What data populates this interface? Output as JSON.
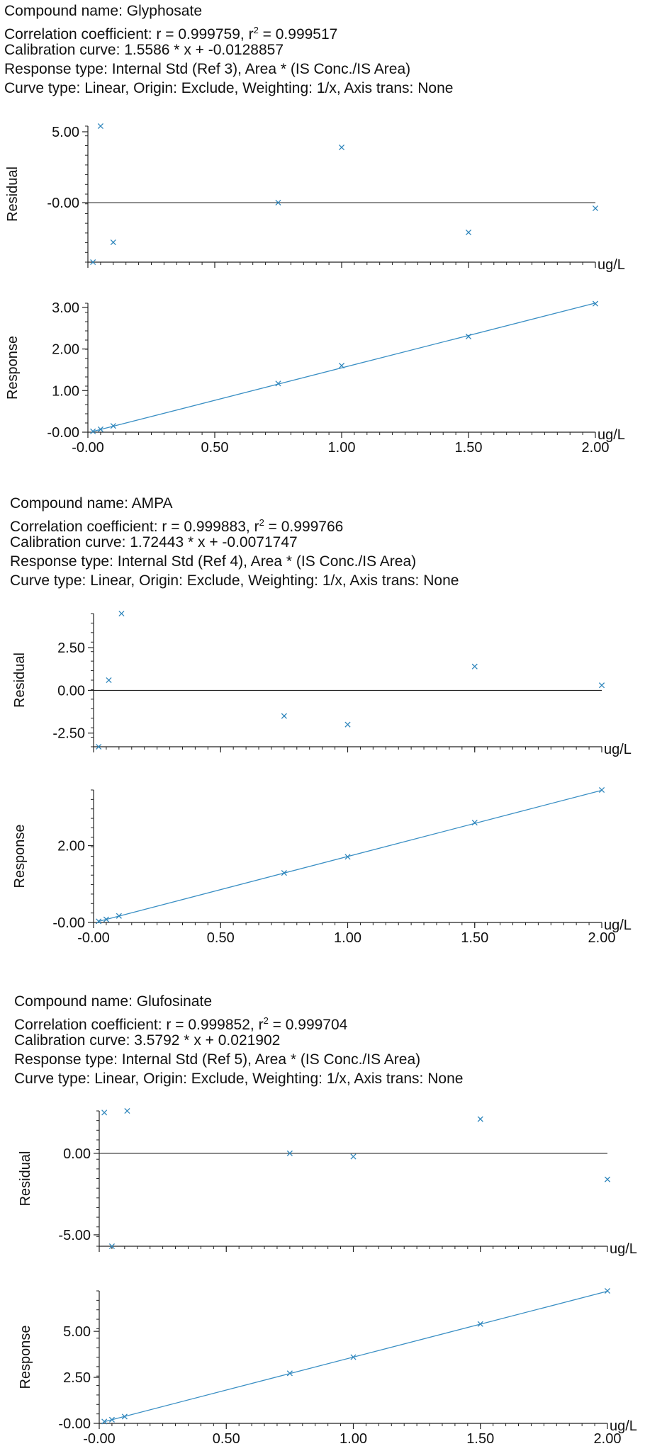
{
  "colors": {
    "marker": "#2f86bc",
    "axis": "#222222",
    "fit_line": "#3a8fc4"
  },
  "chart_data": [
    {
      "type": "scatter",
      "compound": {
        "name_line": "Compound name: Glyphosate",
        "corr_prefix": "Correlation coefficient: r = 0.999759, r",
        "corr_sup": "2",
        "corr_suffix": " = 0.999517",
        "calib_line": "Calibration curve: 1.5586 * x + -0.0128857",
        "response_line": "Response type: Internal Std (Ref 3), Area * (IS Conc./IS Area)",
        "curve_line": "Curve type: Linear, Origin: Exclude, Weighting: 1/x, Axis trans: None"
      },
      "unit_label": "ug/L",
      "x_ticks": [
        "-0.00",
        "0.50",
        "1.00",
        "1.50",
        "2.00"
      ],
      "xlim": [
        0,
        2
      ],
      "residual": {
        "ylabel": "Residual",
        "ylim": [
          -4.2,
          5.4
        ],
        "yticks": [
          {
            "v": 5,
            "label": "5.00"
          },
          {
            "v": 0,
            "label": "-0.00"
          }
        ],
        "points": [
          [
            0.02,
            -4.2
          ],
          [
            0.05,
            5.4
          ],
          [
            0.1,
            -2.8
          ],
          [
            0.75,
            0.0
          ],
          [
            1.0,
            3.9
          ],
          [
            1.5,
            -2.1
          ],
          [
            2.0,
            -0.4
          ]
        ]
      },
      "response": {
        "ylabel": "Response",
        "ylim": [
          0,
          3.1
        ],
        "yticks": [
          {
            "v": 3,
            "label": "3.00"
          },
          {
            "v": 2,
            "label": "2.00"
          },
          {
            "v": 1,
            "label": "1.00"
          },
          {
            "v": 0,
            "label": "-0.00"
          }
        ],
        "slope": 1.5586,
        "intercept": -0.0128857,
        "points": [
          [
            0.02,
            0.02
          ],
          [
            0.05,
            0.07
          ],
          [
            0.1,
            0.15
          ],
          [
            0.75,
            1.17
          ],
          [
            1.0,
            1.6
          ],
          [
            1.5,
            2.3
          ],
          [
            2.0,
            3.09
          ]
        ]
      }
    },
    {
      "type": "scatter",
      "compound": {
        "name_line": "Compound name: AMPA",
        "corr_prefix": "Correlation coefficient: r = 0.999883, r",
        "corr_sup": "2",
        "corr_suffix": "  = 0.999766",
        "calib_line": "Calibration curve: 1.72443 * x + -0.0071747",
        "response_line": "Response type: Internal Std (Ref 4), Area * (IS Conc./IS Area)",
        "curve_line": "Curve type: Linear, Origin: Exclude, Weighting: 1/x, Axis trans: None"
      },
      "unit_label": "ug/L",
      "x_ticks": [
        "-0.00",
        "0.50",
        "1.00",
        "1.50",
        "2.00"
      ],
      "xlim": [
        0,
        2
      ],
      "residual": {
        "ylabel": "Residual",
        "ylim": [
          -3.3,
          4.5
        ],
        "yticks": [
          {
            "v": 2.5,
            "label": "2.50"
          },
          {
            "v": 0,
            "label": "0.00"
          },
          {
            "v": -2.5,
            "label": "-2.50"
          }
        ],
        "points": [
          [
            0.02,
            -3.3
          ],
          [
            0.06,
            0.6
          ],
          [
            0.11,
            4.5
          ],
          [
            0.75,
            -1.5
          ],
          [
            1.0,
            -2.0
          ],
          [
            1.5,
            1.4
          ],
          [
            2.0,
            0.3
          ]
        ]
      },
      "response": {
        "ylabel": "Response",
        "ylim": [
          0,
          3.45
        ],
        "yticks": [
          {
            "v": 2,
            "label": "2.00"
          },
          {
            "v": 0,
            "label": "-0.00"
          }
        ],
        "slope": 1.72443,
        "intercept": -0.0071747,
        "points": [
          [
            0.02,
            0.03
          ],
          [
            0.05,
            0.08
          ],
          [
            0.1,
            0.17
          ],
          [
            0.75,
            1.29
          ],
          [
            1.0,
            1.71
          ],
          [
            1.5,
            2.6
          ],
          [
            2.0,
            3.45
          ]
        ]
      }
    },
    {
      "type": "scatter",
      "compound": {
        "name_line": "Compound name: Glufosinate",
        "corr_prefix": "Correlation coefficient: r = 0.999852, r",
        "corr_sup": "2",
        "corr_suffix": "  = 0.999704",
        "calib_line": "Calibration curve: 3.5792 * x + 0.021902",
        "response_line": "Response type: Internal Std (Ref 5), Area * (IS Conc./IS Area)",
        "curve_line": "Curve type: Linear, Origin: Exclude, Weighting: 1/x, Axis trans: None"
      },
      "unit_label": "ug/L",
      "x_ticks": [
        "-0.00",
        "0.50",
        "1.00",
        "1.50",
        "2.00"
      ],
      "xlim": [
        0,
        2
      ],
      "residual": {
        "ylabel": "Residual",
        "ylim": [
          -5.7,
          2.6
        ],
        "yticks": [
          {
            "v": 0,
            "label": "0.00"
          },
          {
            "v": -5,
            "label": "-5.00"
          }
        ],
        "points": [
          [
            0.02,
            2.5
          ],
          [
            0.05,
            -5.7
          ],
          [
            0.11,
            2.6
          ],
          [
            0.75,
            0.0
          ],
          [
            1.0,
            -0.2
          ],
          [
            1.5,
            2.1
          ],
          [
            2.0,
            -1.6
          ]
        ]
      },
      "response": {
        "ylabel": "Response",
        "ylim": [
          0,
          7.2
        ],
        "yticks": [
          {
            "v": 5,
            "label": "5.00"
          },
          {
            "v": 2.5,
            "label": "2.50"
          },
          {
            "v": 0,
            "label": "-0.00"
          }
        ],
        "slope": 3.5792,
        "intercept": 0.021902,
        "points": [
          [
            0.02,
            0.1
          ],
          [
            0.05,
            0.2
          ],
          [
            0.1,
            0.37
          ],
          [
            0.75,
            2.72
          ],
          [
            1.0,
            3.6
          ],
          [
            1.5,
            5.4
          ],
          [
            2.0,
            7.2
          ]
        ]
      }
    }
  ]
}
